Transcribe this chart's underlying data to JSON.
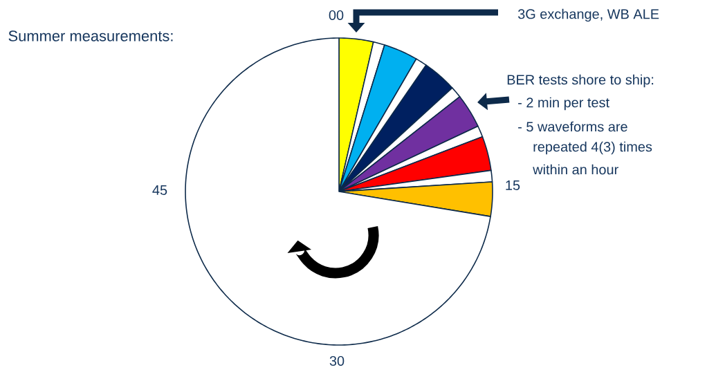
{
  "chart_data": {
    "type": "pie",
    "title": "Summer measurements:",
    "categories": [
      null,
      null,
      null,
      null,
      null,
      null,
      null,
      null,
      null,
      null,
      null,
      null
    ],
    "values": [
      3.6,
      1.2,
      3.6,
      1.2,
      3.6,
      1.2,
      3.6,
      1.2,
      3.6,
      1.2,
      3.6,
      72.4
    ],
    "colors": [
      "#ffff00",
      "#ffffff",
      "#00b0f0",
      "#ffffff",
      "#002060",
      "#ffffff",
      "#7030a0",
      "#ffffff",
      "#ff0000",
      "#ffffff",
      "#ffc000",
      "#ffffff"
    ],
    "annotations": [
      "00",
      "15",
      "30",
      "45",
      "3G exchange, WB ALE",
      "BER tests shore to ship:",
      "- 2 min per test",
      "- 5 waveforms are",
      "repeated 4(3) times",
      "within an hour"
    ]
  }
}
